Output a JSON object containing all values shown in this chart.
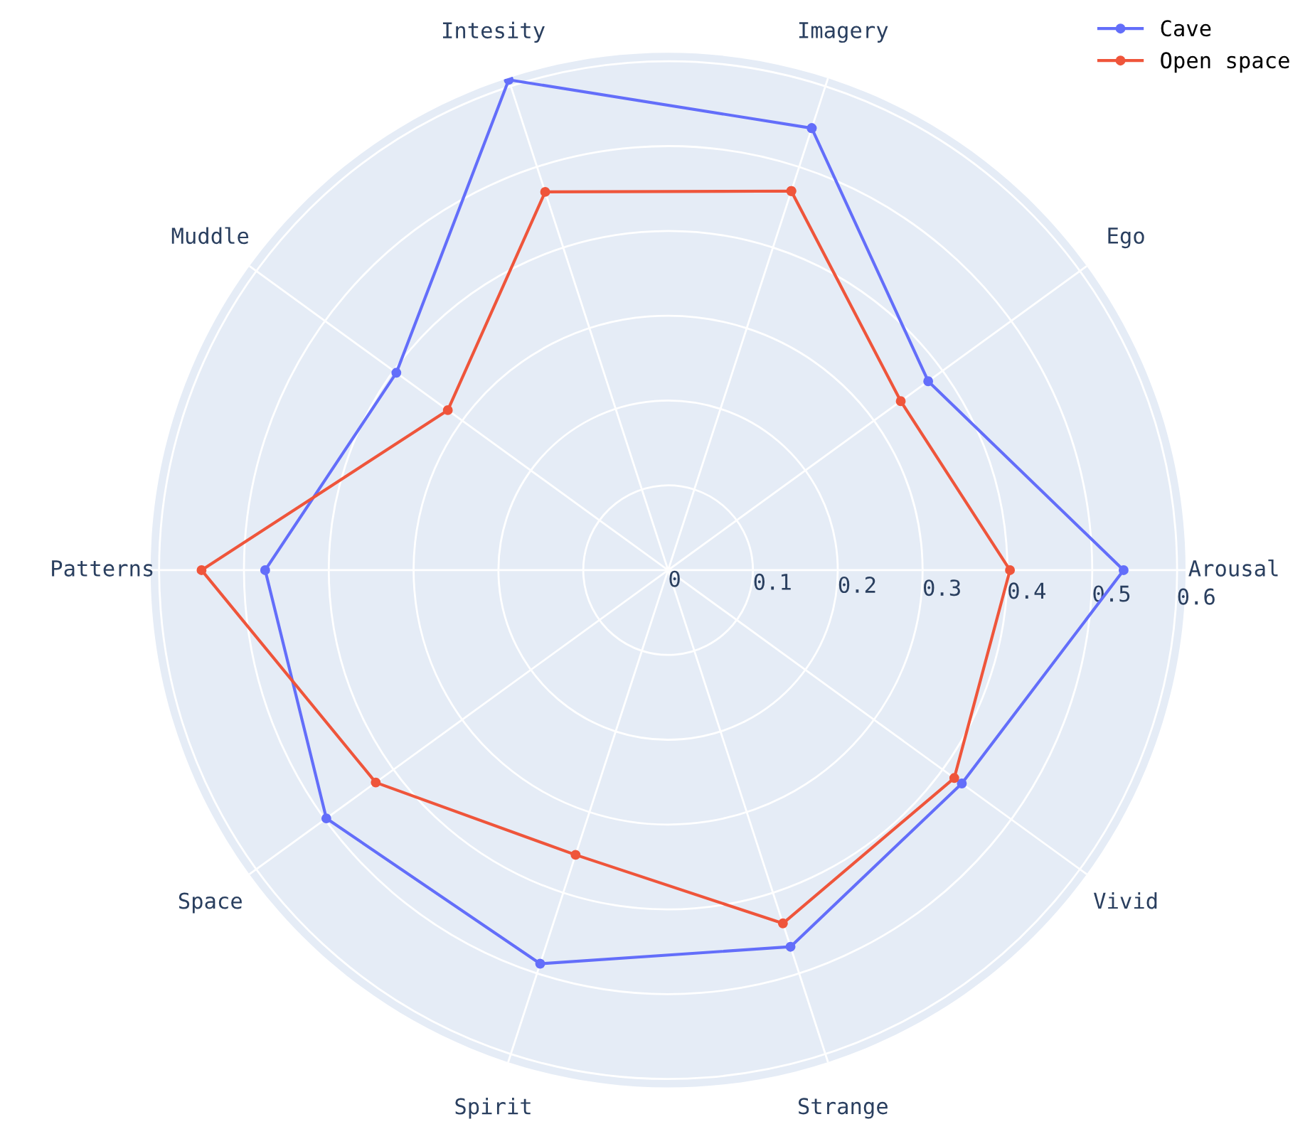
{
  "chart_data": {
    "type": "radar",
    "categories": [
      "Imagery",
      "Ego",
      "Arousal",
      "Vivid",
      "Strange",
      "Spirit",
      "Space",
      "Patterns",
      "Muddle",
      "Intesity"
    ],
    "series": [
      {
        "name": "Cave",
        "color": "#636efa",
        "values": [
          0.548,
          0.379,
          0.537,
          0.428,
          0.467,
          0.488,
          0.498,
          0.475,
          0.396,
          0.608
        ]
      },
      {
        "name": "Open space",
        "color": "#ef553b",
        "values": [
          0.47,
          0.339,
          0.403,
          0.417,
          0.438,
          0.353,
          0.426,
          0.55,
          0.321,
          0.469
        ]
      }
    ],
    "ylim": [
      0,
      0.61
    ],
    "yticks": [
      0,
      0.1,
      0.2,
      0.3,
      0.4,
      0.5,
      0.6
    ],
    "grid": true,
    "legend": "top right",
    "marker": "circle",
    "line_style": "solid"
  }
}
